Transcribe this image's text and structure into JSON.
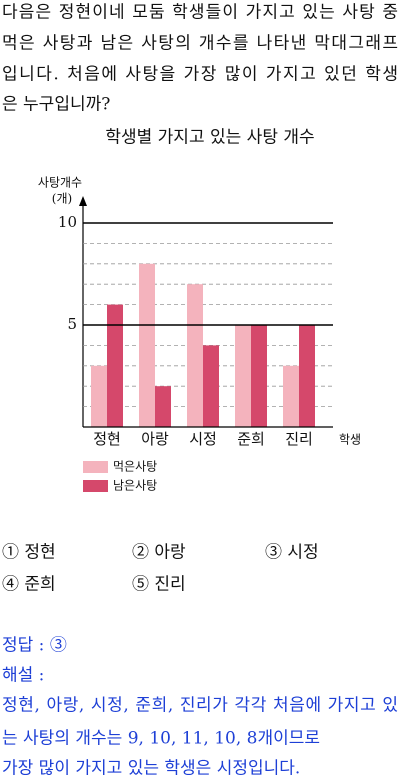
{
  "question": {
    "lines": [
      "다음은 정현이네 모둠 학생들이 가지고 있는 사탕 중",
      "먹은 사탕과 남은 사탕의 개수를 나타낸 막대그래프",
      "입니다. 처음에 사탕을 가장 많이 가지고 있던 학생",
      "은 누구입니까?"
    ]
  },
  "chart_data": {
    "type": "bar",
    "title": "학생별 가지고 있는 사탕 개수",
    "y_label": [
      "사탕개수",
      "(개)"
    ],
    "x_label": "학생",
    "categories": [
      "정현",
      "아랑",
      "시정",
      "준희",
      "진리"
    ],
    "series": [
      {
        "name": "먹은사탕",
        "color": "#f4b3bd",
        "values": [
          3,
          8,
          7,
          5,
          3
        ]
      },
      {
        "name": "남은사탕",
        "color": "#d5486b",
        "values": [
          6,
          2,
          4,
          5,
          5
        ]
      }
    ],
    "ylim": [
      0,
      10
    ],
    "yticks": [
      5,
      10
    ],
    "minor_yticks": [
      1,
      2,
      3,
      4,
      6,
      7,
      8,
      9
    ],
    "grid": true
  },
  "choices": [
    "① 정현",
    "② 아랑",
    "③ 시정",
    "④ 준희",
    "⑤ 진리"
  ],
  "answer": {
    "label": "정답 : ③",
    "explanation_label": "해설 :",
    "explanation_lines": [
      "정현, 아랑, 시정, 준희, 진리가 각각 처음에 가지고 있",
      "는 사탕의 개수는 9, 10, 11, 10, 8개이므로",
      "가장 많이 가지고 있는 학생은 시정입니다."
    ]
  }
}
